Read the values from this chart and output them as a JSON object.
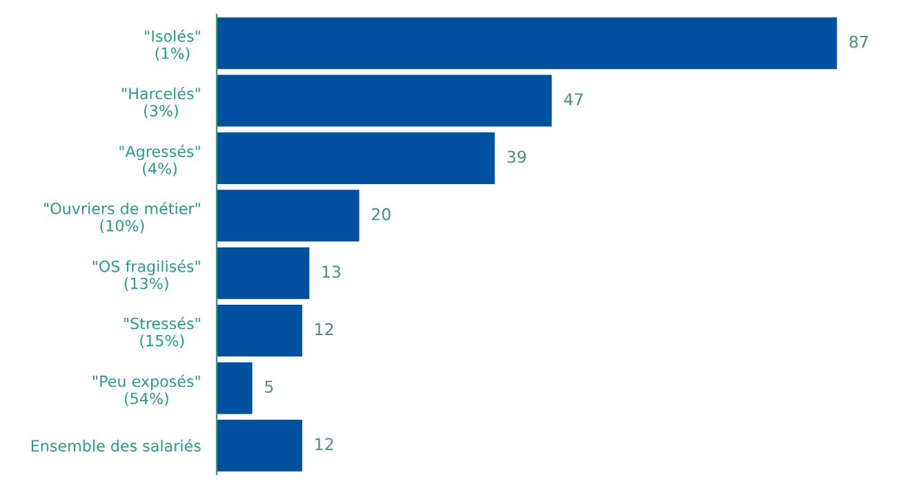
{
  "chart_data": {
    "type": "bar",
    "orientation": "horizontal",
    "categories": [
      "\"Isolés\"\n(1%)",
      "\"Harcelés\"\n(3%)",
      "\"Agressés\"\n(4%)",
      "\"Ouvriers de métier\"\n(10%)",
      "\"OS fragilisés\"\n(13%)",
      "\"Stressés\"\n(15%)",
      "\"Peu exposés\"\n(54%)",
      "Ensemble des salariés"
    ],
    "values": [
      87,
      47,
      39,
      20,
      13,
      12,
      5,
      12
    ],
    "color": "#0050a0",
    "data_labels": true,
    "grid": false,
    "legend": false
  }
}
